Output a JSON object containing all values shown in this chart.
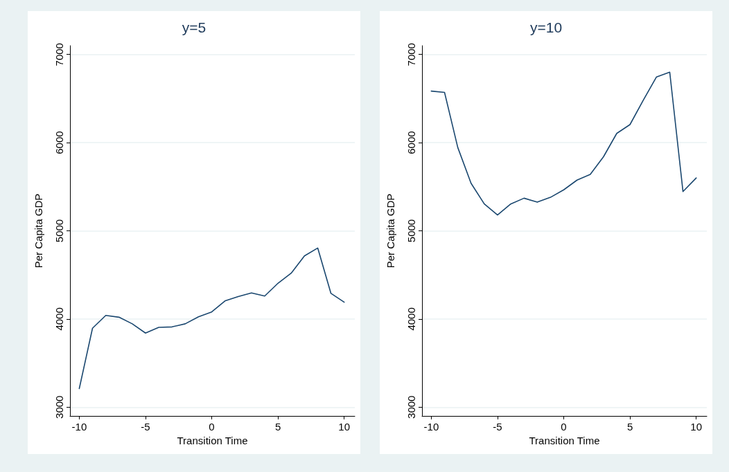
{
  "chart_data": [
    {
      "type": "line",
      "title": "y=5",
      "xlabel": "Transition Time",
      "ylabel": "Per Capita GDP",
      "x": [
        -10,
        -9,
        -8,
        -7,
        -6,
        -5,
        -4,
        -3,
        -2,
        -1,
        0,
        1,
        2,
        3,
        4,
        5,
        6,
        7,
        8,
        9,
        10
      ],
      "series": [
        {
          "color": "#1a476f",
          "values": [
            3210,
            3895,
            4040,
            4020,
            3945,
            3840,
            3905,
            3910,
            3945,
            4025,
            4080,
            4205,
            4255,
            4295,
            4260,
            4405,
            4520,
            4715,
            4805,
            4290,
            4190
          ]
        }
      ],
      "xlim": [
        -10.7,
        10.8
      ],
      "xticks": [
        -10,
        -5,
        0,
        5,
        10
      ],
      "ylim": [
        2900,
        7100
      ],
      "yticks": [
        3000,
        4000,
        5000,
        6000,
        7000
      ],
      "grid": "y",
      "marker": "none",
      "line_style": "solid"
    },
    {
      "type": "line",
      "title": "y=10",
      "xlabel": "Transition Time",
      "ylabel": "Per Capita GDP",
      "x": [
        -10,
        -9,
        -8,
        -7,
        -6,
        -5,
        -4,
        -3,
        -2,
        -1,
        0,
        1,
        2,
        3,
        4,
        5,
        6,
        7,
        8,
        9,
        10
      ],
      "series": [
        {
          "color": "#1a476f",
          "values": [
            6585,
            6570,
            5945,
            5540,
            5305,
            5180,
            5305,
            5370,
            5325,
            5380,
            5465,
            5575,
            5640,
            5840,
            6105,
            6205,
            6480,
            6745,
            6800,
            5445,
            5600
          ]
        }
      ],
      "xlim": [
        -10.7,
        10.8
      ],
      "xticks": [
        -10,
        -5,
        0,
        5,
        10
      ],
      "ylim": [
        2900,
        7100
      ],
      "yticks": [
        3000,
        4000,
        5000,
        6000,
        7000
      ],
      "grid": "y",
      "marker": "none",
      "line_style": "solid"
    }
  ]
}
